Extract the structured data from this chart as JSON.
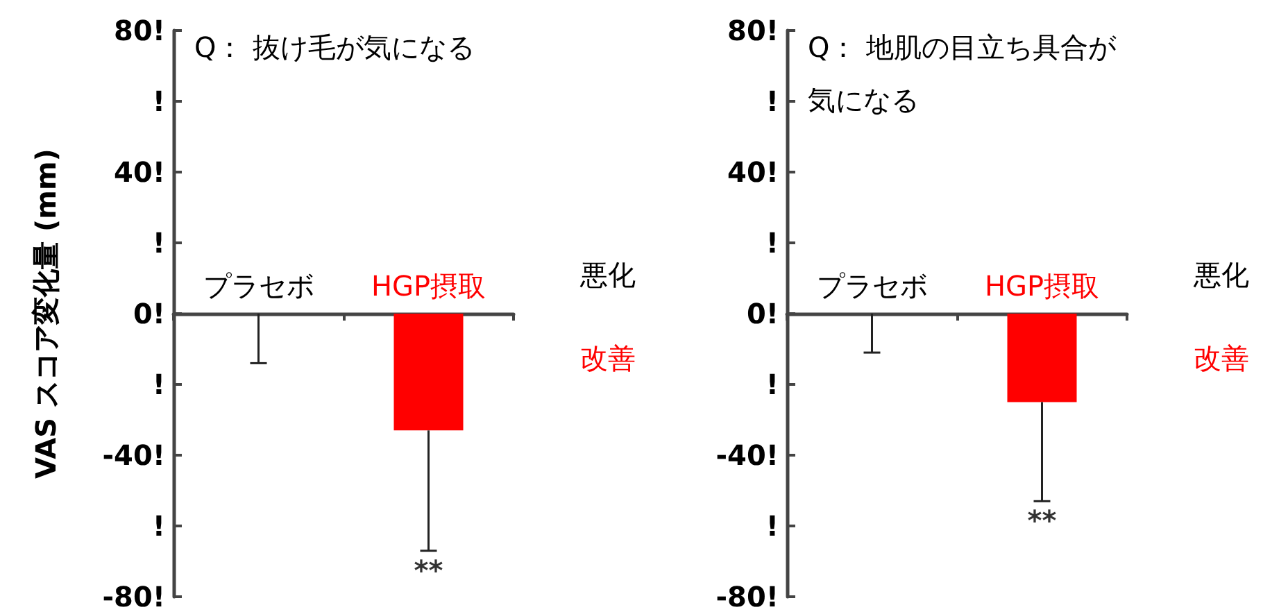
{
  "chart_data": [
    {
      "type": "bar",
      "title": "Q： 抜け毛が気になる",
      "ylabel": "VAS スコア変化量 (mm)",
      "categories": [
        "プラセボ",
        "HGP摂取"
      ],
      "values": [
        0,
        -33
      ],
      "colors": [
        "#000000",
        "#ff0000"
      ],
      "errors": [
        [
          -14,
          0
        ],
        [
          -67,
          -33
        ]
      ],
      "ylim": [
        -80,
        80
      ],
      "yticks": [
        {
          "value": 80,
          "label": "80!"
        },
        {
          "value": 60,
          "label": "!"
        },
        {
          "value": 40,
          "label": "40!"
        },
        {
          "value": 20,
          "label": "!"
        },
        {
          "value": 0,
          "label": "0!"
        },
        {
          "value": -20,
          "label": "!"
        },
        {
          "value": -40,
          "label": "-40!"
        },
        {
          "value": -60,
          "label": "!"
        },
        {
          "value": -80,
          "label": "-80!"
        }
      ],
      "annotations": [
        "悪化",
        "改善",
        "**"
      ]
    },
    {
      "type": "bar",
      "title": "Q： 地肌の目立ち具合が気になる",
      "categories": [
        "プラセボ",
        "HGP摂取"
      ],
      "values": [
        0,
        -25
      ],
      "colors": [
        "#000000",
        "#ff0000"
      ],
      "errors": [
        [
          -11,
          0
        ],
        [
          -53,
          -25
        ]
      ],
      "ylim": [
        -80,
        80
      ],
      "yticks": [
        {
          "value": 80,
          "label": "80!"
        },
        {
          "value": 60,
          "label": "!"
        },
        {
          "value": 40,
          "label": "40!"
        },
        {
          "value": 20,
          "label": "!"
        },
        {
          "value": 0,
          "label": "0!"
        },
        {
          "value": -20,
          "label": "!"
        },
        {
          "value": -40,
          "label": "-40!"
        },
        {
          "value": -60,
          "label": "!"
        },
        {
          "value": -80,
          "label": "-80!"
        }
      ],
      "annotations": [
        "悪化",
        "改善",
        "**"
      ]
    }
  ]
}
